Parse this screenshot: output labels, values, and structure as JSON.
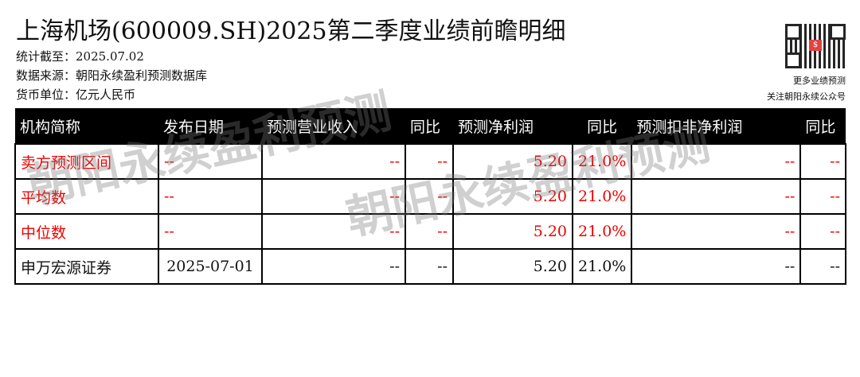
{
  "title": "上海机场(600009.SH)2025第二季度业绩前瞻明细",
  "meta": {
    "as_of": "统计截至：2025.07.02",
    "source": "数据来源：朝阳永续盈利预测数据库",
    "currency": "货币单位：亿元人民币"
  },
  "side": {
    "more": "更多业绩预测",
    "follow": "关注朝阳永续公众号",
    "qr_logo": "$"
  },
  "watermark": "朝阳永续盈利预测",
  "table": {
    "headers": [
      "机构简称",
      "发布日期",
      "预测营业收入",
      "同比",
      "预测净利润",
      "同比",
      "预测扣非净利润",
      "同比"
    ],
    "rows": [
      [
        "卖方预测区间",
        "--",
        "--",
        "--",
        "5.20",
        "21.0%",
        "--",
        "--"
      ],
      [
        "平均数",
        "--",
        "--",
        "--",
        "5.20",
        "21.0%",
        "--",
        "--"
      ],
      [
        "中位数",
        "--",
        "--",
        "--",
        "5.20",
        "21.0%",
        "--",
        "--"
      ],
      [
        "申万宏源证券",
        "2025-07-01",
        "--",
        "--",
        "5.20",
        "21.0%",
        "--",
        "--"
      ]
    ]
  },
  "colors": {
    "highlight": "#e00000",
    "header_bg": "#000000"
  }
}
